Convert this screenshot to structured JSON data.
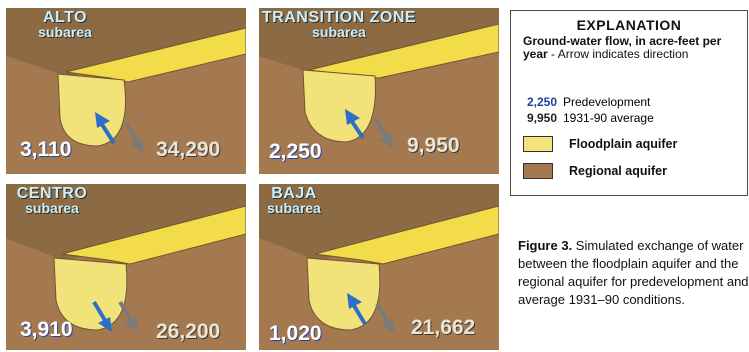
{
  "panels": [
    {
      "id": "alto",
      "name": "ALTO",
      "sub": "subarea",
      "pre": "3,110",
      "avg": "34,290",
      "pre_dir": "up",
      "avg_dir": "down"
    },
    {
      "id": "transition",
      "name": "TRANSITION ZONE",
      "sub": "subarea",
      "pre": "2,250",
      "avg": "9,950",
      "pre_dir": "up",
      "avg_dir": "down"
    },
    {
      "id": "centro",
      "name": "CENTRO",
      "sub": "subarea",
      "pre": "3,910",
      "avg": "26,200",
      "pre_dir": "down",
      "avg_dir": "down"
    },
    {
      "id": "baja",
      "name": "BAJA",
      "sub": "subarea",
      "pre": "1,020",
      "avg": "21,662",
      "pre_dir": "up",
      "avg_dir": "down"
    }
  ],
  "explanation": {
    "title": "EXPLANATION",
    "flow_bold": "Ground-water flow, in acre-feet per year",
    "flow_rest": " - Arrow indicates direction",
    "pre_value": "2,250",
    "pre_label": "Predevelopment",
    "avg_value": "9,950",
    "avg_label": "1931-90 average",
    "floodplain_label": "Floodplain aquifer",
    "regional_label": "Regional aquifer"
  },
  "caption": {
    "fig": "Figure 3.",
    "text": " Simulated exchange of water between the floodplain aquifer and the regional aquifer for predevelopment and average 1931–90 conditions."
  },
  "colors": {
    "floodplain": "#f2e27a",
    "floodplain_top": "#f3dc49",
    "regional": "#a5794f",
    "regional_top": "#8b6a44",
    "pre_arrow": "#2d6ec9",
    "avg_arrow": "#7a7a7a",
    "title_text": "#c7f0ff"
  }
}
